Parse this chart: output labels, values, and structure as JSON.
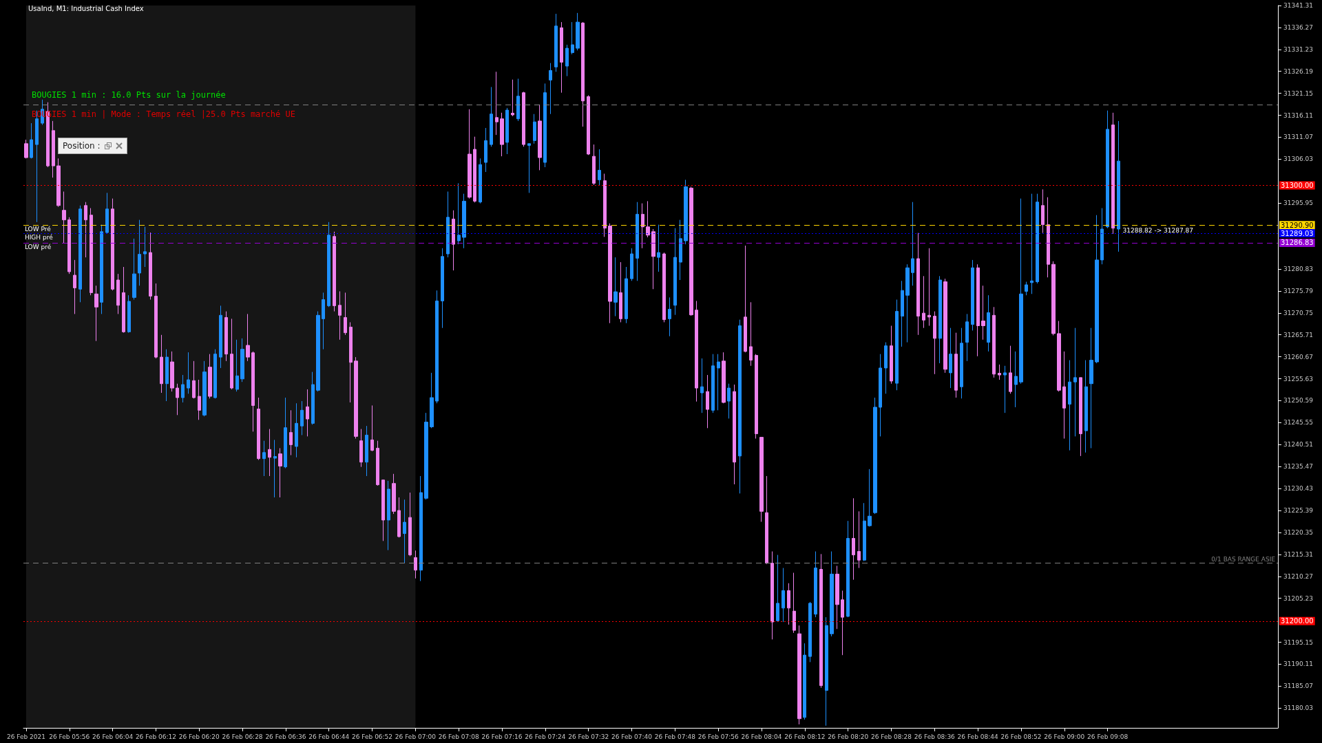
{
  "chart_data": {
    "type": "candlestick",
    "title": "UsaInd, M1: Industrial Cash Index",
    "categories": [
      "26 Feb 2021",
      null,
      null,
      null,
      null,
      null,
      null,
      null,
      "26 Feb 05:56",
      null,
      null,
      null,
      null,
      null,
      null,
      null,
      "26 Feb 06:04",
      null,
      null,
      null,
      null,
      null,
      null,
      null,
      "26 Feb 06:12",
      null,
      null,
      null,
      null,
      null,
      null,
      null,
      "26 Feb 06:20",
      null,
      null,
      null,
      null,
      null,
      null,
      null,
      "26 Feb 06:28",
      null,
      null,
      null,
      null,
      null,
      null,
      null,
      "26 Feb 06:36",
      null,
      null,
      null,
      null,
      null,
      null,
      null,
      "26 Feb 06:44",
      null,
      null,
      null,
      null,
      null,
      null,
      null,
      "26 Feb 06:52",
      null,
      null,
      null,
      null,
      null,
      null,
      null,
      "26 Feb 07:00",
      null,
      null,
      null,
      null,
      null,
      null,
      null,
      "26 Feb 07:08",
      null,
      null,
      null,
      null,
      null,
      null,
      null,
      "26 Feb 07:16",
      null,
      null,
      null,
      null,
      null,
      null,
      null,
      "26 Feb 07:24",
      null,
      null,
      null,
      null,
      null,
      null,
      null,
      "26 Feb 07:32",
      null,
      null,
      null,
      null,
      null,
      null,
      null,
      "26 Feb 07:40",
      null,
      null,
      null,
      null,
      null,
      null,
      null,
      "26 Feb 07:48",
      null,
      null,
      null,
      null,
      null,
      null,
      null,
      "26 Feb 07:56",
      null,
      null,
      null,
      null,
      null,
      null,
      null,
      "26 Feb 08:04",
      null,
      null,
      null,
      null,
      null,
      null,
      null,
      "26 Feb 08:12",
      null,
      null,
      null,
      null,
      null,
      null,
      null,
      "26 Feb 08:20",
      null,
      null,
      null,
      null,
      null,
      null,
      null,
      "26 Feb 08:28",
      null,
      null,
      null,
      null,
      null,
      null,
      null,
      "26 Feb 08:36",
      null,
      null,
      null,
      null,
      null,
      null,
      null,
      "26 Feb 08:44",
      null,
      null,
      null,
      null,
      null,
      null,
      null,
      "26 Feb 08:52",
      null,
      null,
      null,
      null,
      null,
      null,
      null,
      "26 Feb 09:00",
      null,
      null,
      null,
      null,
      null,
      null,
      null,
      "26 Feb 09:08",
      null,
      null,
      null,
      null,
      null,
      null,
      null,
      null,
      null,
      null,
      null,
      null,
      null,
      null,
      null,
      null,
      null,
      null,
      null,
      null,
      null,
      null,
      null,
      null,
      null,
      null,
      null,
      null,
      null,
      null,
      null
    ],
    "colors": [
      "#ee82ee",
      "#1e90ff",
      "#1e90ff",
      "#1e90ff",
      "#ee82ee",
      "#ee82ee",
      "#ee82ee",
      "#ee82ee",
      "#ee82ee",
      "#ee82ee",
      "#1e90ff",
      "#ee82ee",
      "#ee82ee",
      "#ee82ee",
      "#1e90ff",
      "#1e90ff",
      "#ee82ee",
      "#ee82ee",
      "#ee82ee",
      "#1e90ff",
      "#1e90ff",
      "#1e90ff",
      "#1e90ff",
      "#ee82ee",
      "#ee82ee",
      "#ee82ee",
      "#1e90ff",
      "#ee82ee",
      "#ee82ee",
      "#1e90ff",
      "#1e90ff",
      "#ee82ee",
      "#ee82ee",
      "#1e90ff",
      "#ee82ee",
      "#1e90ff",
      "#1e90ff",
      "#ee82ee",
      "#ee82ee",
      "#1e90ff",
      "#1e90ff",
      "#ee82ee",
      "#ee82ee",
      "#ee82ee",
      "#1e90ff",
      "#ee82ee",
      "#1e90ff",
      "#ee82ee",
      "#1e90ff",
      "#ee82ee",
      "#1e90ff",
      "#1e90ff",
      "#ee82ee",
      "#1e90ff",
      "#1e90ff",
      "#1e90ff",
      "#1e90ff",
      "#ee82ee",
      "#ee82ee",
      "#ee82ee",
      "#ee82ee",
      "#ee82ee",
      "#ee82ee",
      "#1e90ff",
      "#ee82ee",
      "#ee82ee",
      "#ee82ee",
      "#1e90ff",
      "#ee82ee",
      "#ee82ee",
      "#1e90ff",
      "#ee82ee",
      "#ee82ee",
      "#1e90ff",
      "#1e90ff",
      "#1e90ff",
      "#1e90ff",
      "#1e90ff",
      "#1e90ff",
      "#ee82ee",
      "#1e90ff",
      "#1e90ff",
      "#ee82ee",
      "#ee82ee",
      "#1e90ff",
      "#1e90ff",
      "#1e90ff",
      "#ee82ee",
      "#ee82ee",
      "#1e90ff",
      "#ee82ee",
      "#1e90ff",
      "#ee82ee",
      "#1e90ff",
      "#1e90ff",
      "#ee82ee",
      "#1e90ff",
      "#1e90ff",
      "#1e90ff",
      "#ee82ee",
      "#1e90ff",
      "#1e90ff",
      "#1e90ff",
      "#ee82ee",
      "#ee82ee",
      "#ee82ee",
      "#1e90ff",
      "#ee82ee",
      "#ee82ee",
      "#1e90ff",
      "#ee82ee",
      "#1e90ff",
      "#1e90ff",
      "#1e90ff",
      "#ee82ee",
      "#ee82ee",
      "#ee82ee",
      "#1e90ff",
      "#ee82ee",
      "#1e90ff",
      "#1e90ff",
      "#1e90ff",
      "#1e90ff",
      "#ee82ee",
      "#ee82ee",
      "#1e90ff",
      "#ee82ee",
      "#1e90ff",
      "#1e90ff",
      "#ee82ee",
      "#1e90ff",
      "#ee82ee",
      "#1e90ff",
      "#ee82ee",
      "#ee82ee",
      "#ee82ee",
      "#ee82ee",
      "#ee82ee",
      "#ee82ee",
      "#1e90ff",
      "#1e90ff",
      "#ee82ee",
      "#ee82ee",
      "#ee82ee",
      "#1e90ff",
      "#1e90ff",
      "#1e90ff",
      "#ee82ee",
      "#1e90ff",
      "#1e90ff",
      "#ee82ee",
      "#ee82ee",
      "#1e90ff",
      "#ee82ee",
      "#ee82ee",
      "#1e90ff",
      "#1e90ff",
      "#1e90ff",
      "#1e90ff",
      "#1e90ff",
      "#ee82ee",
      "#1e90ff",
      "#1e90ff",
      "#1e90ff",
      "#1e90ff",
      "#ee82ee",
      "#ee82ee",
      "#ee82ee",
      "#ee82ee",
      "#1e90ff",
      "#ee82ee",
      "#1e90ff",
      "#ee82ee",
      "#1e90ff",
      "#1e90ff",
      "#1e90ff",
      "#ee82ee",
      "#ee82ee",
      "#1e90ff",
      "#ee82ee",
      "#ee82ee",
      "#1e90ff",
      "#ee82ee",
      "#1e90ff",
      "#1e90ff",
      "#1e90ff",
      "#1e90ff",
      "#1e90ff",
      "#ee82ee",
      "#ee82ee",
      "#ee82ee",
      "#ee82ee",
      "#ee82ee",
      "#1e90ff",
      "#1e90ff",
      "#ee82ee",
      "#1e90ff",
      "#1e90ff",
      "#1e90ff",
      "#1e90ff",
      "#1e90ff",
      "#ee82ee",
      "#1e90ff",
      null,
      null,
      null,
      null,
      null,
      null,
      null,
      null,
      null,
      null,
      null,
      null,
      null,
      null,
      null,
      null,
      null,
      null,
      null,
      null,
      null,
      null,
      null,
      null,
      null,
      null,
      null,
      null,
      null
    ],
    "ohlc": [
      [
        31309.6,
        31310.5,
        31306.2,
        31306.4
      ],
      [
        31306.4,
        31314.3,
        31306.2,
        31310.5
      ],
      [
        31309.4,
        31317.2,
        31291.6,
        31315.3
      ],
      [
        31314.3,
        31319.7,
        31313.9,
        31317.5
      ],
      [
        31317.0,
        31319.1,
        31304.2,
        31304.5
      ],
      [
        31312.6,
        31314.8,
        31301.8,
        31304.5
      ],
      [
        31304.5,
        31306.2,
        31295.1,
        31295.4
      ],
      [
        31294.3,
        31298.6,
        31286.7,
        31292.1
      ],
      [
        31292.1,
        31292.7,
        31279.7,
        31280.2
      ],
      [
        31279.4,
        31282.9,
        31270.5,
        31276.5
      ],
      [
        31276.2,
        31295.4,
        31273.2,
        31294.6
      ],
      [
        31295.4,
        31296.2,
        31283.5,
        31292.1
      ],
      [
        31293.2,
        31294.8,
        31274.8,
        31275.4
      ],
      [
        31275.1,
        31277.0,
        31264.3,
        31272.1
      ],
      [
        31273.2,
        31291.0,
        31270.5,
        31289.4
      ],
      [
        31289.2,
        31298.3,
        31288.9,
        31294.6
      ],
      [
        31294.6,
        31297.0,
        31275.9,
        31276.2
      ],
      [
        31278.3,
        31279.7,
        31270.5,
        31272.5
      ],
      [
        31275.4,
        31281.3,
        31266.2,
        31266.4
      ],
      [
        31266.4,
        31274.8,
        31266.2,
        31273.4
      ],
      [
        31274.3,
        31287.8,
        31273.8,
        31279.7
      ],
      [
        31279.9,
        31292.1,
        31277.0,
        31284.2
      ],
      [
        31284.3,
        31290.5,
        31281.3,
        31284.8
      ],
      [
        31284.6,
        31289.2,
        31273.8,
        31274.6
      ],
      [
        31274.6,
        31277.5,
        31260.3,
        31260.6
      ],
      [
        31260.6,
        31265.7,
        31252.4,
        31254.5
      ],
      [
        31254.5,
        31262.4,
        31250.5,
        31260.6
      ],
      [
        31259.5,
        31261.9,
        31252.7,
        31253.5
      ],
      [
        31253.5,
        31254.5,
        31247.3,
        31251.3
      ],
      [
        31251.3,
        31256.5,
        31250.2,
        31254.3
      ],
      [
        31253.5,
        31261.7,
        31252.2,
        31255.4
      ],
      [
        31255.2,
        31259.7,
        31251.1,
        31251.3
      ],
      [
        31251.6,
        31255.4,
        31246.2,
        31248.4
      ],
      [
        31247.3,
        31259.7,
        31247.0,
        31257.2
      ],
      [
        31258.3,
        31261.3,
        31251.1,
        31251.6
      ],
      [
        31251.3,
        31262.4,
        31251.1,
        31261.3
      ],
      [
        31260.6,
        31272.4,
        31258.1,
        31270.2
      ],
      [
        31269.7,
        31271.1,
        31259.7,
        31261.3
      ],
      [
        31261.3,
        31269.4,
        31253.2,
        31253.5
      ],
      [
        31253.2,
        31264.6,
        31252.7,
        31256.3
      ],
      [
        31255.6,
        31264.9,
        31254.9,
        31262.4
      ],
      [
        31263.3,
        31270.5,
        31259.7,
        31260.6
      ],
      [
        31261.6,
        31261.9,
        31243.5,
        31249.5
      ],
      [
        31248.7,
        31251.3,
        31237.0,
        31237.3
      ],
      [
        31237.3,
        31241.4,
        31233.3,
        31238.7
      ],
      [
        31239.4,
        31244.1,
        31233.3,
        31237.6
      ],
      [
        31237.4,
        31241.6,
        31228.4,
        31237.8
      ],
      [
        31238.4,
        31239.7,
        31228.4,
        31235.6
      ],
      [
        31235.4,
        31251.3,
        31235.1,
        31244.4
      ],
      [
        31243.3,
        31248.4,
        31238.1,
        31240.5
      ],
      [
        31240.1,
        31250.0,
        31237.6,
        31245.4
      ],
      [
        31244.8,
        31250.5,
        31242.7,
        31248.4
      ],
      [
        31249.2,
        31253.2,
        31242.4,
        31246.4
      ],
      [
        31245.4,
        31257.2,
        31245.1,
        31254.3
      ],
      [
        31253.0,
        31271.1,
        31252.7,
        31270.2
      ],
      [
        31269.4,
        31275.4,
        31262.4,
        31273.8
      ],
      [
        31272.4,
        31291.6,
        31272.1,
        31288.6
      ],
      [
        31288.3,
        31289.4,
        31271.1,
        31272.4
      ],
      [
        31272.5,
        31275.7,
        31264.6,
        31270.2
      ],
      [
        31269.7,
        31275.4,
        31265.7,
        31266.2
      ],
      [
        31267.5,
        31268.6,
        31250.2,
        31259.4
      ],
      [
        31259.7,
        31260.6,
        31241.9,
        31242.4
      ],
      [
        31241.4,
        31244.1,
        31235.4,
        31236.5
      ],
      [
        31236.5,
        31244.8,
        31233.3,
        31242.7
      ],
      [
        31241.6,
        31249.5,
        31239.0,
        31239.2
      ],
      [
        31239.7,
        31241.4,
        31231.1,
        31231.3
      ],
      [
        31232.4,
        31232.5,
        31218.4,
        31223.2
      ],
      [
        31223.2,
        31232.2,
        31216.3,
        31230.3
      ],
      [
        31231.6,
        31233.8,
        31224.6,
        31225.2
      ],
      [
        31225.4,
        31228.4,
        31219.2,
        31219.4
      ],
      [
        31220.1,
        31227.9,
        31213.3,
        31222.7
      ],
      [
        31223.8,
        31229.5,
        31214.9,
        31215.2
      ],
      [
        31214.6,
        31216.2,
        31209.8,
        31211.7
      ],
      [
        31211.7,
        31233.3,
        31209.2,
        31229.5
      ],
      [
        31228.2,
        31247.8,
        31227.9,
        31245.7
      ],
      [
        31244.6,
        31257.0,
        31244.3,
        31251.3
      ],
      [
        31250.5,
        31275.9,
        31250.0,
        31273.5
      ],
      [
        31273.5,
        31285.6,
        31267.3,
        31283.7
      ],
      [
        31284.3,
        31298.6,
        31283.5,
        31292.7
      ],
      [
        31292.3,
        31294.3,
        31280.5,
        31286.5
      ],
      [
        31287.3,
        31300.5,
        31286.5,
        31288.6
      ],
      [
        31288.1,
        31298.1,
        31285.6,
        31296.4
      ],
      [
        31307.2,
        31317.5,
        31297.0,
        31297.3
      ],
      [
        31308.3,
        31311.2,
        31296.1,
        31296.4
      ],
      [
        31296.2,
        31306.2,
        31295.9,
        31304.8
      ],
      [
        31305.3,
        31313.2,
        31303.1,
        31310.3
      ],
      [
        31309.4,
        31322.6,
        31308.9,
        31316.4
      ],
      [
        31315.6,
        31326.1,
        31311.6,
        31314.6
      ],
      [
        31315.3,
        31316.7,
        31306.7,
        31309.4
      ],
      [
        31309.9,
        31317.8,
        31307.2,
        31317.3
      ],
      [
        31316.6,
        31324.3,
        31315.9,
        31316.2
      ],
      [
        31315.3,
        31324.5,
        31314.8,
        31320.5
      ],
      [
        31321.3,
        31321.5,
        31308.9,
        31309.4
      ],
      [
        31309.2,
        31309.6,
        31298.3,
        31309.6
      ],
      [
        31310.3,
        31316.4,
        31309.6,
        31314.6
      ],
      [
        31314.8,
        31318.6,
        31303.5,
        31306.4
      ],
      [
        31305.3,
        31323.4,
        31304.2,
        31321.3
      ],
      [
        31324.2,
        31328.1,
        31316.4,
        31326.4
      ],
      [
        31327.2,
        31339.4,
        31326.1,
        31336.6
      ],
      [
        31336.2,
        31337.5,
        31321.3,
        31328.3
      ],
      [
        31327.4,
        31332.3,
        31325.1,
        31331.5
      ],
      [
        31330.5,
        31337.5,
        31330.1,
        31332.3
      ],
      [
        31331.5,
        31339.6,
        31331.0,
        31337.5
      ],
      [
        31337.3,
        31337.5,
        31313.5,
        31319.4
      ],
      [
        31320.4,
        31320.7,
        31307.0,
        31307.2
      ],
      [
        31306.7,
        31309.4,
        31300.1,
        31300.5
      ],
      [
        31301.3,
        31308.3,
        31300.0,
        31303.5
      ],
      [
        31301.1,
        31302.7,
        31288.2,
        31290.2
      ],
      [
        31290.7,
        31291.3,
        31268.4,
        31273.4
      ],
      [
        31273.2,
        31283.5,
        31270.0,
        31275.6
      ],
      [
        31275.4,
        31282.4,
        31268.6,
        31269.4
      ],
      [
        31269.4,
        31281.3,
        31268.4,
        31278.6
      ],
      [
        31278.6,
        31285.6,
        31278.1,
        31284.3
      ],
      [
        31283.3,
        31296.2,
        31278.1,
        31293.4
      ],
      [
        31293.4,
        31295.9,
        31285.6,
        31290.5
      ],
      [
        31290.5,
        31296.4,
        31288.1,
        31288.6
      ],
      [
        31289.4,
        31290.0,
        31276.2,
        31283.7
      ],
      [
        31283.5,
        31291.0,
        31280.2,
        31284.6
      ],
      [
        31284.3,
        31284.6,
        31268.6,
        31269.2
      ],
      [
        31269.4,
        31274.3,
        31265.4,
        31271.6
      ],
      [
        31272.5,
        31290.2,
        31270.3,
        31283.5
      ],
      [
        31282.4,
        31292.1,
        31278.3,
        31287.8
      ],
      [
        31287.3,
        31301.3,
        31286.5,
        31299.7
      ],
      [
        31299.4,
        31299.7,
        31270.1,
        31270.3
      ],
      [
        31271.4,
        31273.5,
        31250.4,
        31253.5
      ],
      [
        31252.4,
        31260.3,
        31247.8,
        31253.8
      ],
      [
        31252.7,
        31256.5,
        31244.3,
        31248.6
      ],
      [
        31248.4,
        31261.3,
        31247.8,
        31258.6
      ],
      [
        31258.1,
        31261.3,
        31248.4,
        31259.5
      ],
      [
        31259.7,
        31261.7,
        31250.0,
        31250.2
      ],
      [
        31250.5,
        31254.5,
        31246.5,
        31253.5
      ],
      [
        31252.7,
        31254.3,
        31231.4,
        31236.5
      ],
      [
        31237.9,
        31269.2,
        31229.3,
        31267.8
      ],
      [
        31269.8,
        31286.2,
        31261.7,
        31261.9
      ],
      [
        31263.0,
        31273.2,
        31258.6,
        31259.9
      ],
      [
        31261.0,
        31261.3,
        31241.9,
        31243.0
      ],
      [
        31242.2,
        31242.2,
        31222.8,
        31225.2
      ],
      [
        31224.9,
        31233.3,
        31213.1,
        31213.3
      ],
      [
        31213.3,
        31216.0,
        31195.8,
        31199.8
      ],
      [
        31200.1,
        31215.2,
        31199.8,
        31204.1
      ],
      [
        31203.0,
        31212.2,
        31199.8,
        31207.0
      ],
      [
        31207.0,
        31208.7,
        31199.2,
        31203.0
      ],
      [
        31202.3,
        31211.1,
        31197.3,
        31197.9
      ],
      [
        31197.1,
        31199.0,
        31176.3,
        31177.6
      ],
      [
        31177.9,
        31194.9,
        31177.4,
        31192.2
      ],
      [
        31191.9,
        31204.4,
        31190.6,
        31204.1
      ],
      [
        31201.6,
        31216.0,
        31200.9,
        31212.2
      ],
      [
        31211.9,
        31215.4,
        31184.7,
        31185.2
      ],
      [
        31184.1,
        31200.9,
        31176.0,
        31199.0
      ],
      [
        31197.1,
        31216.0,
        31196.5,
        31210.8
      ],
      [
        31210.8,
        31212.7,
        31198.2,
        31203.8
      ],
      [
        31204.9,
        31207.0,
        31192.2,
        31200.9
      ],
      [
        31201.1,
        31223.0,
        31200.9,
        31219.0
      ],
      [
        31219.0,
        31228.2,
        31209.5,
        31215.2
      ],
      [
        31216.0,
        31225.2,
        31212.2,
        31214.0
      ],
      [
        31214.0,
        31227.1,
        31213.8,
        31223.0
      ],
      [
        31221.9,
        31234.9,
        31221.7,
        31224.1
      ],
      [
        31224.9,
        31251.3,
        31224.6,
        31249.1
      ],
      [
        31249.1,
        31261.3,
        31242.4,
        31258.1
      ],
      [
        31258.1,
        31264.0,
        31252.2,
        31263.2
      ],
      [
        31263.2,
        31267.8,
        31254.5,
        31255.1
      ],
      [
        31254.6,
        31273.8,
        31253.0,
        31271.1
      ],
      [
        31270.0,
        31278.1,
        31263.0,
        31275.9
      ],
      [
        31274.8,
        31281.9,
        31264.0,
        31281.1
      ],
      [
        31280.0,
        31296.2,
        31277.0,
        31283.2
      ],
      [
        31283.2,
        31289.1,
        31265.7,
        31270.0
      ],
      [
        31270.7,
        31279.2,
        31267.3,
        31269.1
      ],
      [
        31270.2,
        31285.6,
        31267.8,
        31269.8
      ],
      [
        31270.0,
        31271.1,
        31256.7,
        31264.9
      ],
      [
        31264.9,
        31279.2,
        31259.2,
        31278.3
      ],
      [
        31277.9,
        31278.6,
        31257.0,
        31257.8
      ],
      [
        31257.0,
        31267.3,
        31253.5,
        31261.3
      ],
      [
        31261.3,
        31266.2,
        31251.3,
        31253.0
      ],
      [
        31253.8,
        31267.3,
        31251.1,
        31263.8
      ],
      [
        31264.0,
        31270.5,
        31259.7,
        31268.7
      ],
      [
        31268.1,
        31282.9,
        31266.7,
        31281.1
      ],
      [
        31281.1,
        31281.9,
        31260.8,
        31267.8
      ],
      [
        31268.9,
        31277.0,
        31264.6,
        31267.8
      ],
      [
        31264.0,
        31274.8,
        31261.9,
        31270.8
      ],
      [
        31270.2,
        31272.1,
        31255.9,
        31256.7
      ],
      [
        31256.9,
        31258.9,
        31255.4,
        31256.5
      ],
      [
        31256.5,
        31258.6,
        31247.8,
        31257.0
      ],
      [
        31257.0,
        31263.2,
        31252.2,
        31252.7
      ],
      [
        31254.3,
        31261.9,
        31249.1,
        31256.2
      ],
      [
        31254.9,
        31297.0,
        31254.5,
        31275.1
      ],
      [
        31275.7,
        31277.9,
        31274.8,
        31277.2
      ],
      [
        31277.7,
        31298.1,
        31275.1,
        31278.1
      ],
      [
        31277.9,
        31298.1,
        31277.5,
        31296.2
      ],
      [
        31295.4,
        31299.1,
        31289.1,
        31291.0
      ],
      [
        31291.0,
        31297.3,
        31278.9,
        31281.9
      ],
      [
        31281.9,
        31282.6,
        31265.6,
        31266.0
      ],
      [
        31266.0,
        31268.9,
        31252.7,
        31253.0
      ],
      [
        31253.8,
        31261.9,
        31241.9,
        31248.9
      ],
      [
        31249.8,
        31259.9,
        31239.2,
        31254.9
      ],
      [
        31254.9,
        31267.3,
        31242.4,
        31255.9
      ],
      [
        31255.9,
        31255.9,
        31237.9,
        31243.0
      ],
      [
        31243.7,
        31259.9,
        31238.7,
        31253.8
      ],
      [
        31254.5,
        31267.3,
        31239.7,
        31259.9
      ],
      [
        31259.5,
        31293.2,
        31259.2,
        31282.9
      ],
      [
        31282.9,
        31294.8,
        31281.9,
        31290.0
      ],
      [
        31290.5,
        31317.2,
        31290.2,
        31312.9
      ],
      [
        31313.9,
        31316.7,
        31288.9,
        31290.2
      ],
      [
        31290.0,
        31314.8,
        31284.8,
        31305.6
      ],
      null,
      null,
      null,
      null,
      null,
      null,
      null,
      null,
      null,
      null,
      null,
      null,
      null,
      null,
      null,
      null,
      null,
      null,
      null,
      null,
      null,
      null,
      null,
      null,
      null,
      null,
      null,
      null,
      null
    ],
    "ylim": [
      31175.5,
      31341.31
    ],
    "yticks": [
      31180.03,
      31185.07,
      31190.11,
      31195.15,
      31205.23,
      31210.27,
      31215.31,
      31220.35,
      31225.39,
      31230.43,
      31235.47,
      31240.51,
      31245.55,
      31250.59,
      31255.63,
      31260.67,
      31265.71,
      31270.75,
      31275.79,
      31280.83,
      31295.95,
      31306.03,
      31311.07,
      31316.11,
      31321.15,
      31326.19,
      31331.23,
      31336.27,
      31341.31
    ],
    "ref_lines": [
      {
        "axis": "y",
        "value": 31300,
        "label": "31300.00",
        "color": "#ff0000",
        "line_style": "dotted"
      },
      {
        "axis": "y",
        "value": 31290.9,
        "label": "31290.90",
        "color": "#ffd700",
        "line_style": "dashed"
      },
      {
        "axis": "y",
        "value": 31289.03,
        "label": "31289.03",
        "color": "#0000ff",
        "line_style": "dotted"
      },
      {
        "axis": "y",
        "value": 31286.83,
        "label": "31286.83",
        "color": "#9400d3",
        "line_style": "dashed"
      },
      {
        "axis": "y",
        "value": 31200,
        "label": "31200.00",
        "color": "#ff0000",
        "line_style": "dotted"
      },
      {
        "axis": "y",
        "value": 31318.5,
        "label": null,
        "color": "#808080",
        "line_style": "dashed"
      },
      {
        "axis": "y",
        "value": 31213.3,
        "label": null,
        "color": "#808080",
        "line_style": "dashed"
      }
    ],
    "bands": [
      {
        "axis": "x",
        "from": "26 Feb 2021",
        "to": "26 Feb 07:00",
        "label": null,
        "color": "#161616"
      }
    ],
    "annotations": [
      {
        "text": "BOUGIES 1 min : 16.0 Pts sur la journée"
      },
      {
        "text": "BOUGIES 1 min | Mode : Temps réel |25.0 Pts marché UE"
      },
      "Position :",
      {
        "text": "LOW Pré",
        "x": "26 Feb 2021",
        "y": 31290.9
      },
      {
        "text": "HIGH pré",
        "x": "26 Feb 2021",
        "y": 31289.03
      },
      {
        "text": "LOW pré",
        "x": "26 Feb 2021",
        "y": 31286.83
      },
      {
        "text": "0/1 BAS RANGE ASIE",
        "y": 31213.3
      },
      {
        "text": "31288.82 -> 31287.87",
        "x": "26 Feb 09:08",
        "y": 31288.8
      }
    ]
  }
}
